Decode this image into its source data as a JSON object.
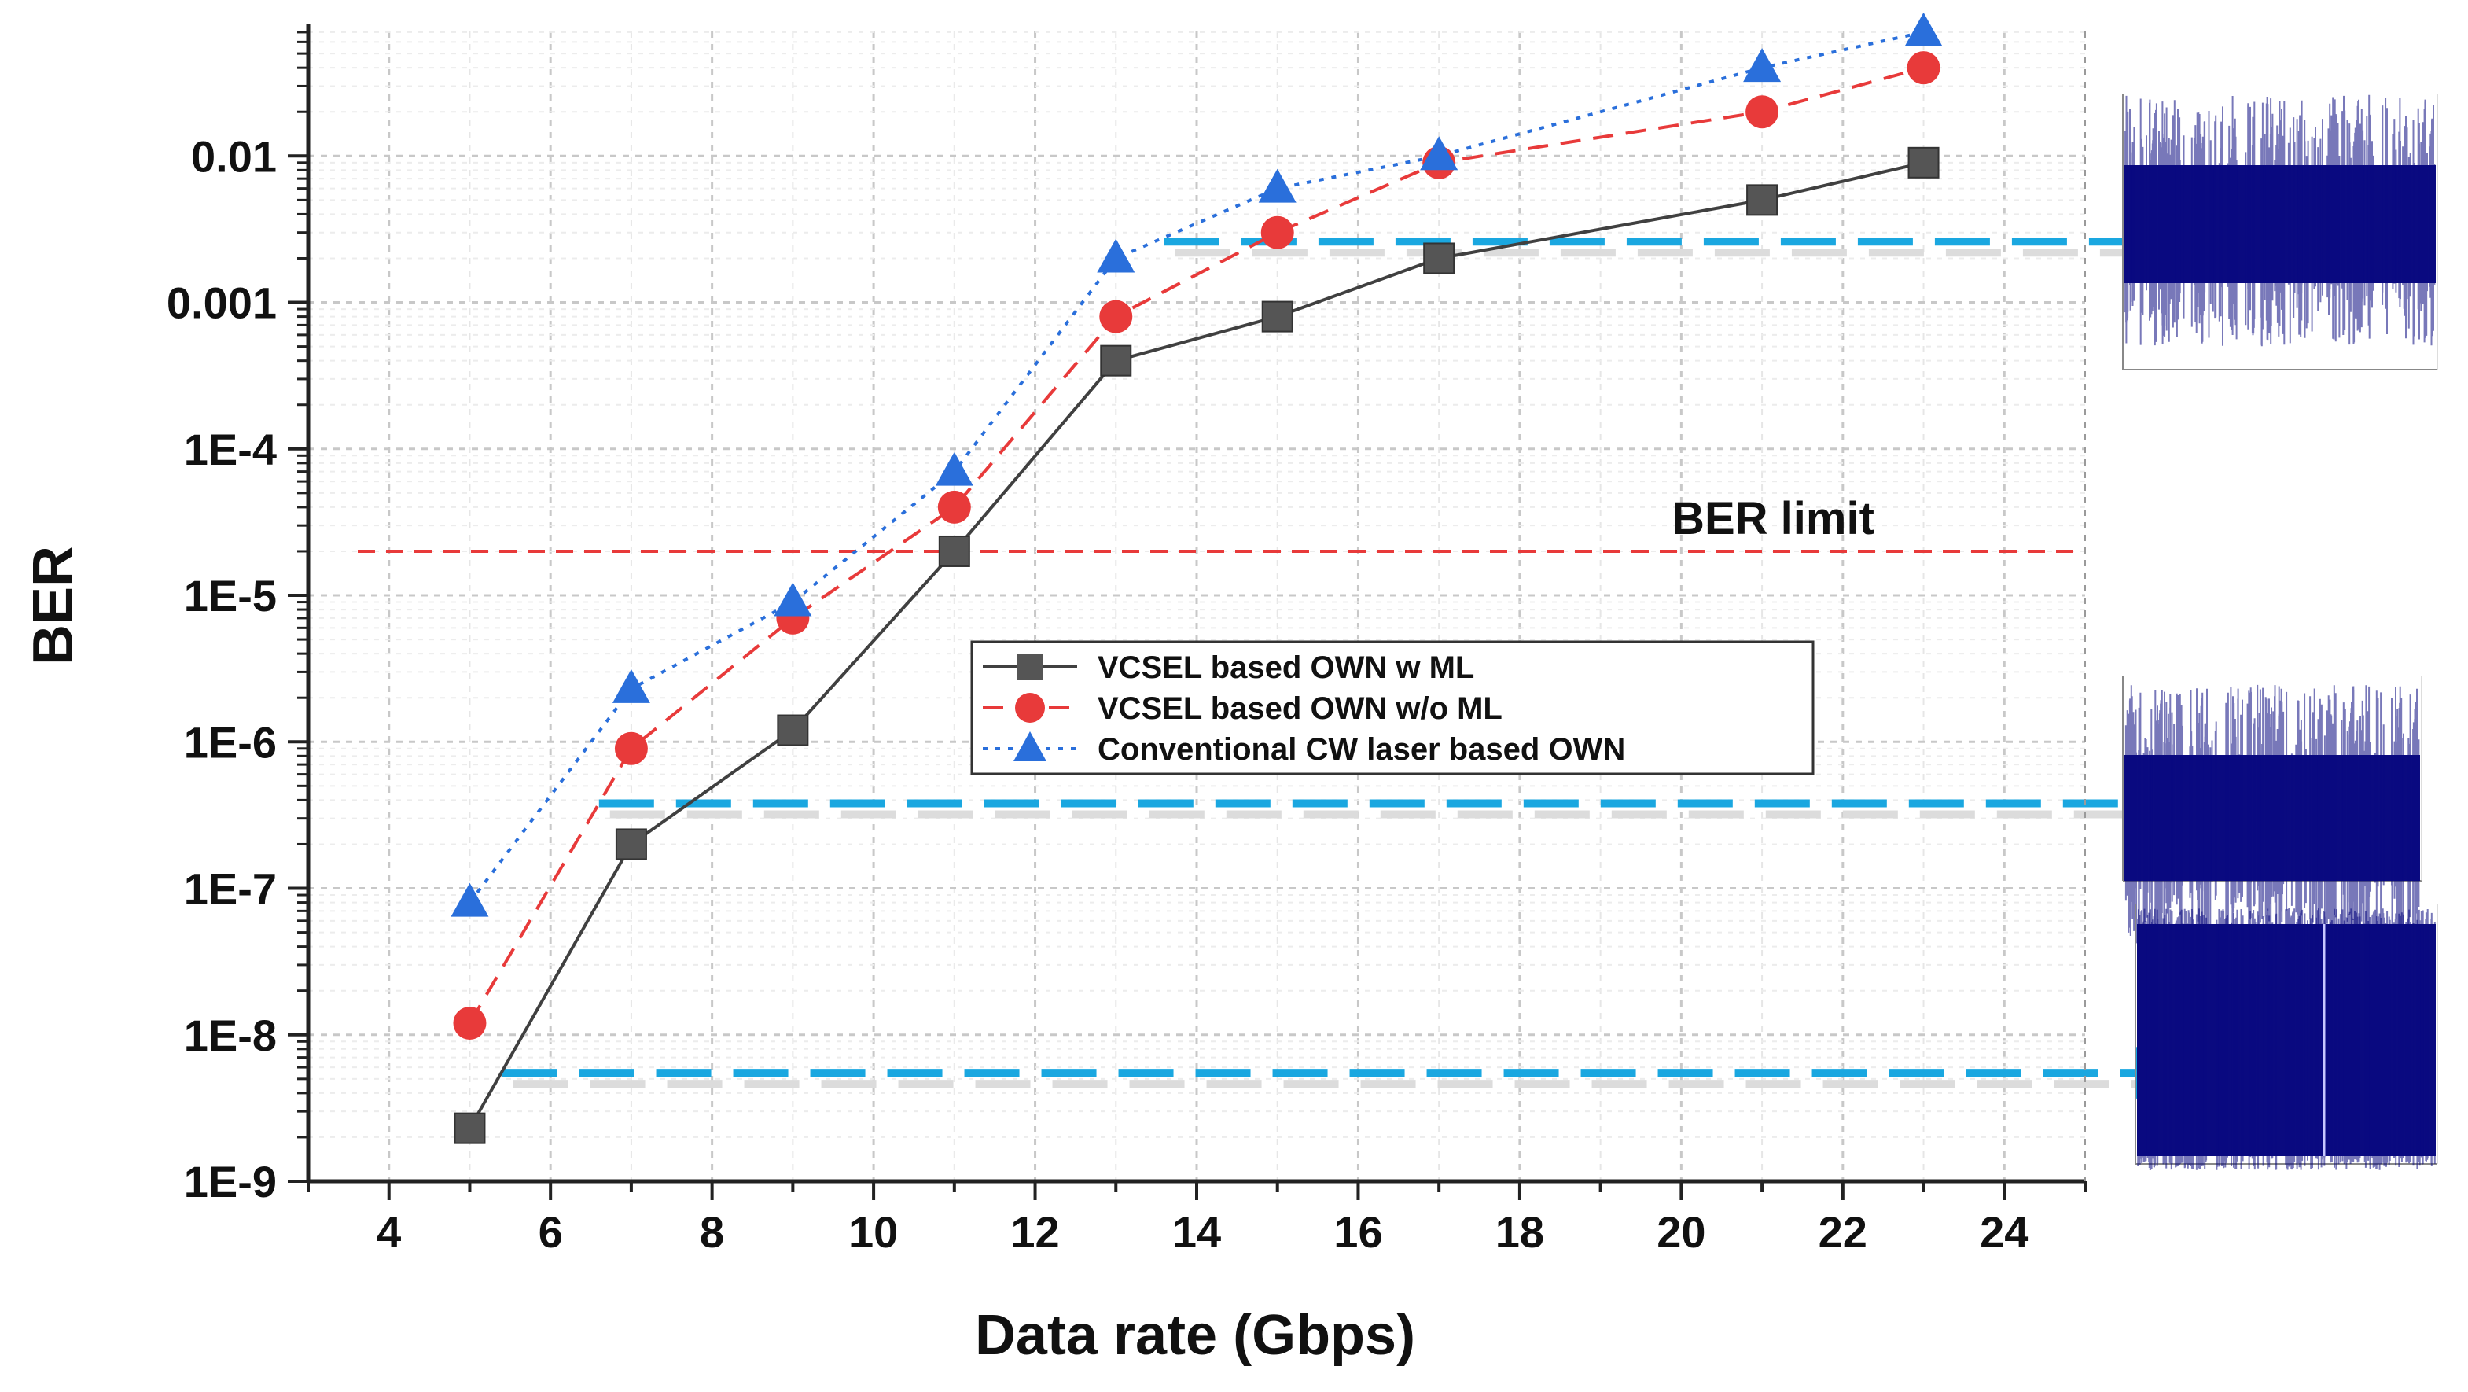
{
  "chart_data": {
    "type": "line",
    "xlabel": "Data rate (Gbps)",
    "ylabel": "BER",
    "xlim": [
      3,
      25
    ],
    "ylim_log10": [
      -9,
      -1.15
    ],
    "yscale": "log",
    "x_ticks": [
      4,
      6,
      8,
      10,
      12,
      14,
      16,
      18,
      20,
      22,
      24
    ],
    "y_ticks": [
      {
        "value": 1e-09,
        "label": "1E-9"
      },
      {
        "value": 1e-08,
        "label": "1E-8"
      },
      {
        "value": 1e-07,
        "label": "1E-7"
      },
      {
        "value": 1e-06,
        "label": "1E-6"
      },
      {
        "value": 1e-05,
        "label": "1E-5"
      },
      {
        "value": 0.0001,
        "label": "1E-4"
      },
      {
        "value": 0.001,
        "label": "0.001"
      },
      {
        "value": 0.01,
        "label": "0.01"
      }
    ],
    "grid": true,
    "legend_position": "center-right",
    "series": [
      {
        "name": "VCSEL based OWN w ML",
        "color": "#404040",
        "marker": "square",
        "line_style": "solid",
        "x": [
          5,
          7,
          9,
          11,
          13,
          15,
          17,
          21,
          23
        ],
        "y": [
          2.3e-09,
          2e-07,
          1.2e-06,
          2e-05,
          0.0004,
          0.0008,
          0.002,
          0.005,
          0.009
        ]
      },
      {
        "name": "VCSEL based OWN w/o ML",
        "color": "#e83a3a",
        "marker": "circle",
        "line_style": "dashed",
        "x": [
          5,
          7,
          9,
          11,
          13,
          15,
          17,
          21,
          23
        ],
        "y": [
          1.2e-08,
          9e-07,
          7e-06,
          4e-05,
          0.0008,
          0.003,
          0.009,
          0.02,
          0.04
        ]
      },
      {
        "name": "Conventional CW laser based OWN",
        "color": "#2a6fdb",
        "marker": "triangle",
        "line_style": "dotted",
        "x": [
          5,
          7,
          9,
          11,
          13,
          15,
          17,
          21,
          23
        ],
        "y": [
          8e-08,
          2.3e-06,
          9e-06,
          7e-05,
          0.002,
          0.006,
          0.01,
          0.04,
          0.07
        ]
      }
    ],
    "reference_line": {
      "label": "BER limit",
      "value": 2e-05,
      "color": "#e83a3a"
    },
    "pointer_arrows": [
      {
        "ber": 0.0026,
        "from_x": 13.6,
        "color": "#1aa7e0"
      },
      {
        "ber": 3.8e-07,
        "from_x": 6.6,
        "color": "#1aa7e0"
      },
      {
        "ber": 5.5e-09,
        "from_x": 5.4,
        "color": "#1aa7e0"
      }
    ],
    "inset_color": "#0a0a80"
  }
}
